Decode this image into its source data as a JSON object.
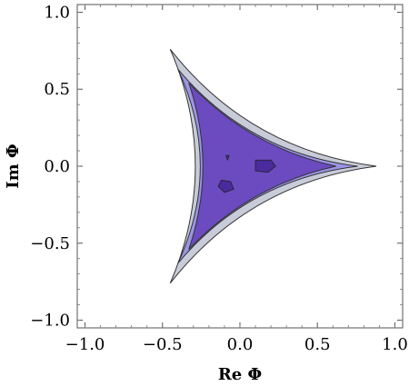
{
  "chart_data": {
    "type": "contour",
    "title": "",
    "xlabel": "Re Φ",
    "ylabel": "Im Φ",
    "xlim": [
      -1.05,
      1.05
    ],
    "ylim": [
      -1.05,
      1.05
    ],
    "x_ticks": [
      {
        "value": -1.0,
        "label": "−1.0"
      },
      {
        "value": -0.5,
        "label": "−0.5"
      },
      {
        "value": 0.0,
        "label": "0.0"
      },
      {
        "value": 0.5,
        "label": "0.5"
      },
      {
        "value": 1.0,
        "label": "1.0"
      }
    ],
    "y_ticks": [
      {
        "value": 1.0,
        "label": "1.0"
      },
      {
        "value": 0.5,
        "label": "0.5"
      },
      {
        "value": 0.0,
        "label": "0.0"
      },
      {
        "value": -0.5,
        "label": "−0.5"
      },
      {
        "value": -1.0,
        "label": "−1.0"
      }
    ],
    "grid": false,
    "legend": "none",
    "regions": [
      {
        "level": "outer",
        "color": "#c8ccd8",
        "vertices": [
          [
            0.88,
            0.0
          ],
          [
            -0.45,
            0.76
          ],
          [
            -0.45,
            -0.76
          ]
        ],
        "curvature": 0.72
      },
      {
        "level": "middle",
        "color": "#9b95e6",
        "vertices": [
          [
            0.76,
            0.0
          ],
          [
            -0.4,
            0.63
          ],
          [
            -0.4,
            -0.63
          ]
        ],
        "curvature": 0.72
      },
      {
        "level": "inner",
        "color": "#6b4bbf",
        "vertices": [
          [
            0.62,
            0.0
          ],
          [
            -0.33,
            0.54
          ],
          [
            -0.33,
            -0.54
          ]
        ],
        "curvature": 0.55
      }
    ],
    "blobs": [
      {
        "color": "#4b2a9e",
        "points": [
          [
            0.1,
            0.04
          ],
          [
            0.2,
            0.04
          ],
          [
            0.23,
            0.0
          ],
          [
            0.18,
            -0.04
          ],
          [
            0.1,
            -0.03
          ]
        ]
      },
      {
        "color": "#4b2a9e",
        "points": [
          [
            -0.12,
            -0.09
          ],
          [
            -0.06,
            -0.1
          ],
          [
            -0.04,
            -0.15
          ],
          [
            -0.1,
            -0.17
          ],
          [
            -0.14,
            -0.13
          ]
        ]
      },
      {
        "color": "#4b2a9e",
        "points": [
          [
            -0.09,
            0.07
          ],
          [
            -0.07,
            0.07
          ],
          [
            -0.08,
            0.04
          ]
        ]
      }
    ]
  }
}
